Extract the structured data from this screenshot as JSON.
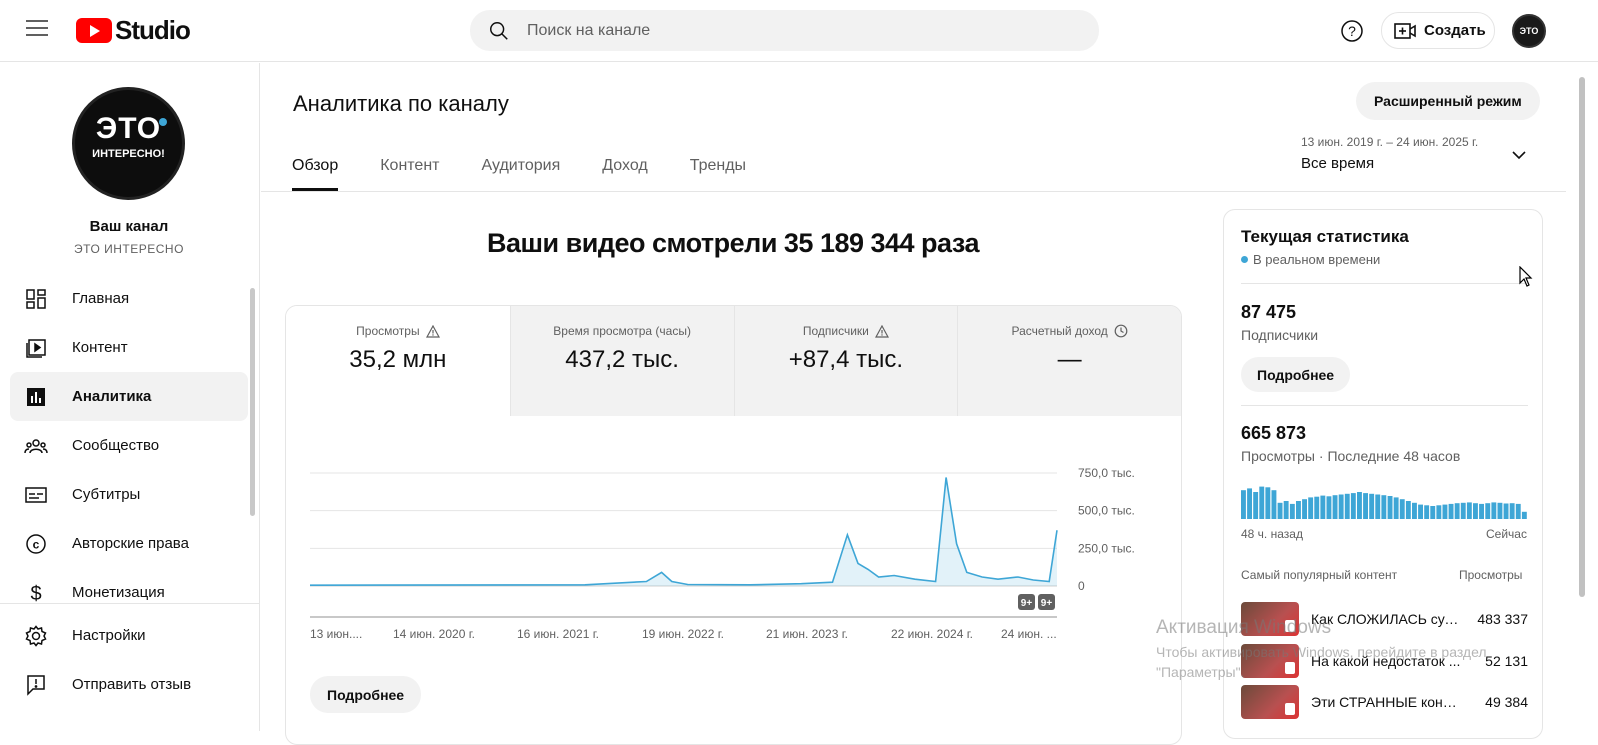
{
  "header": {
    "logo_text": "Studio",
    "search_placeholder": "Поиск на канале",
    "create_label": "Создать",
    "avatar_text": "ЭТО"
  },
  "sidebar": {
    "avatar_big": "ЭТО",
    "avatar_small": "ИНТЕРЕСНО!",
    "channel_title": "Ваш канал",
    "channel_name": "ЭТО ИНТЕРЕСНО",
    "items": [
      {
        "label": "Главная",
        "icon": "dashboard-icon"
      },
      {
        "label": "Контент",
        "icon": "content-icon"
      },
      {
        "label": "Аналитика",
        "icon": "analytics-icon",
        "active": true
      },
      {
        "label": "Сообщество",
        "icon": "community-icon"
      },
      {
        "label": "Субтитры",
        "icon": "subtitles-icon"
      },
      {
        "label": "Авторские права",
        "icon": "copyright-icon"
      },
      {
        "label": "Монетизация",
        "icon": "monetization-icon"
      }
    ],
    "bottom_items": [
      {
        "label": "Настройки",
        "icon": "gear-icon"
      },
      {
        "label": "Отправить отзыв",
        "icon": "feedback-icon"
      }
    ]
  },
  "main": {
    "title": "Аналитика по каналу",
    "advanced_label": "Расширенный режим",
    "tabs": [
      "Обзор",
      "Контент",
      "Аудитория",
      "Доход",
      "Тренды"
    ],
    "active_tab": "Обзор",
    "date_range": "13 июн. 2019 г. – 24 июн. 2025 г.",
    "period": "Все время",
    "headline": "Ваши видео смотрели 35 189 344 раза",
    "metrics": [
      {
        "label": "Просмотры",
        "value": "35,2 млн",
        "icon": "warning-icon"
      },
      {
        "label": "Время просмотра (часы)",
        "value": "437,2 тыс.",
        "icon": ""
      },
      {
        "label": "Подписчики",
        "value": "+87,4 тыс.",
        "icon": "warning-icon"
      },
      {
        "label": "Расчетный доход",
        "value": "—",
        "icon": "clock-icon"
      }
    ],
    "more_label": "Подробнее",
    "badges": [
      "9+",
      "9+"
    ]
  },
  "chart_data": {
    "type": "area",
    "title": "",
    "y_tick_labels": [
      "750,0 тыс.",
      "500,0 тыс.",
      "250,0 тыс.",
      "0"
    ],
    "x_tick_labels": [
      "13 июн....",
      "14 июн. 2020 г.",
      "16 июн. 2021 г.",
      "19 июн. 2022 г.",
      "21 июн. 2023 г.",
      "22 июн. 2024 г.",
      "24 июн. ..."
    ],
    "ylim": [
      0,
      750000
    ],
    "color": "#3ea6d6",
    "x": [
      "2019-06-13",
      "2021-09-01",
      "2022-03-01",
      "2022-04-15",
      "2022-05-15",
      "2022-07-01",
      "2023-01-01",
      "2023-06-01",
      "2023-09-01",
      "2023-10-15",
      "2023-11-15",
      "2023-12-15",
      "2024-01-15",
      "2024-03-01",
      "2024-05-01",
      "2024-07-01",
      "2024-08-01",
      "2024-09-01",
      "2024-10-01",
      "2024-11-15",
      "2025-01-01",
      "2025-03-01",
      "2025-04-15",
      "2025-06-01",
      "2025-06-24"
    ],
    "values": [
      5000,
      8000,
      30000,
      90000,
      30000,
      10000,
      8000,
      15000,
      25000,
      340000,
      150000,
      110000,
      60000,
      70000,
      45000,
      30000,
      720000,
      280000,
      90000,
      60000,
      45000,
      60000,
      40000,
      30000,
      370000
    ]
  },
  "realtime": {
    "title": "Текущая статистика",
    "live": "В реальном времени",
    "subs_value": "87 475",
    "subs_label": "Подписчики",
    "more_label": "Подробнее",
    "views_value": "665 873",
    "views_label": "Просмотры · Последние 48 часов",
    "ago_label": "48 ч. назад",
    "now_label": "Сейчас",
    "top_header": "Самый популярный контент",
    "top_header_right": "Просмотры",
    "bars": [
      0.8,
      0.85,
      0.75,
      0.9,
      0.88,
      0.8,
      0.45,
      0.5,
      0.42,
      0.5,
      0.55,
      0.6,
      0.62,
      0.65,
      0.63,
      0.66,
      0.68,
      0.7,
      0.72,
      0.75,
      0.72,
      0.7,
      0.68,
      0.66,
      0.64,
      0.6,
      0.55,
      0.5,
      0.45,
      0.4,
      0.38,
      0.36,
      0.38,
      0.4,
      0.42,
      0.44,
      0.45,
      0.46,
      0.44,
      0.42,
      0.44,
      0.46,
      0.45,
      0.43,
      0.44,
      0.42,
      0.2
    ],
    "top_items": [
      {
        "title": "Как СЛОЖИЛАСЬ суд...",
        "views": "483 337"
      },
      {
        "title": "На какой недостаток ...",
        "views": "52 131"
      },
      {
        "title": "Эти СТРАННЫЕ консе...",
        "views": "49 384"
      }
    ]
  },
  "watermark": {
    "line1": "Активация Windows",
    "line2": "Чтобы активировать Windows, перейдите в раздел \"Параметры\"."
  }
}
